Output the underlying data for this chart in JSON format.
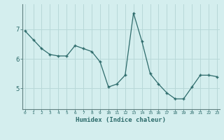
{
  "x": [
    0,
    1,
    2,
    3,
    4,
    5,
    6,
    7,
    8,
    9,
    10,
    11,
    12,
    13,
    14,
    15,
    16,
    17,
    18,
    19,
    20,
    21,
    22,
    23
  ],
  "y": [
    6.95,
    6.65,
    6.35,
    6.15,
    6.1,
    6.1,
    6.45,
    6.35,
    6.25,
    5.9,
    5.05,
    5.15,
    5.45,
    7.55,
    6.6,
    5.5,
    5.15,
    4.85,
    4.65,
    4.65,
    5.05,
    5.45,
    5.45,
    5.4
  ],
  "xlabel": "Humidex (Indice chaleur)",
  "bg_color": "#d4eeee",
  "line_color": "#2d6b6b",
  "marker": "+",
  "marker_size": 3.5,
  "grid_color": "#b8d8d8",
  "yticks": [
    5,
    6,
    7
  ],
  "xticks": [
    0,
    1,
    2,
    3,
    4,
    5,
    6,
    7,
    8,
    9,
    10,
    11,
    12,
    13,
    14,
    15,
    16,
    17,
    18,
    19,
    20,
    21,
    22,
    23
  ],
  "ylim": [
    4.3,
    7.85
  ],
  "xlim": [
    -0.3,
    23.3
  ]
}
